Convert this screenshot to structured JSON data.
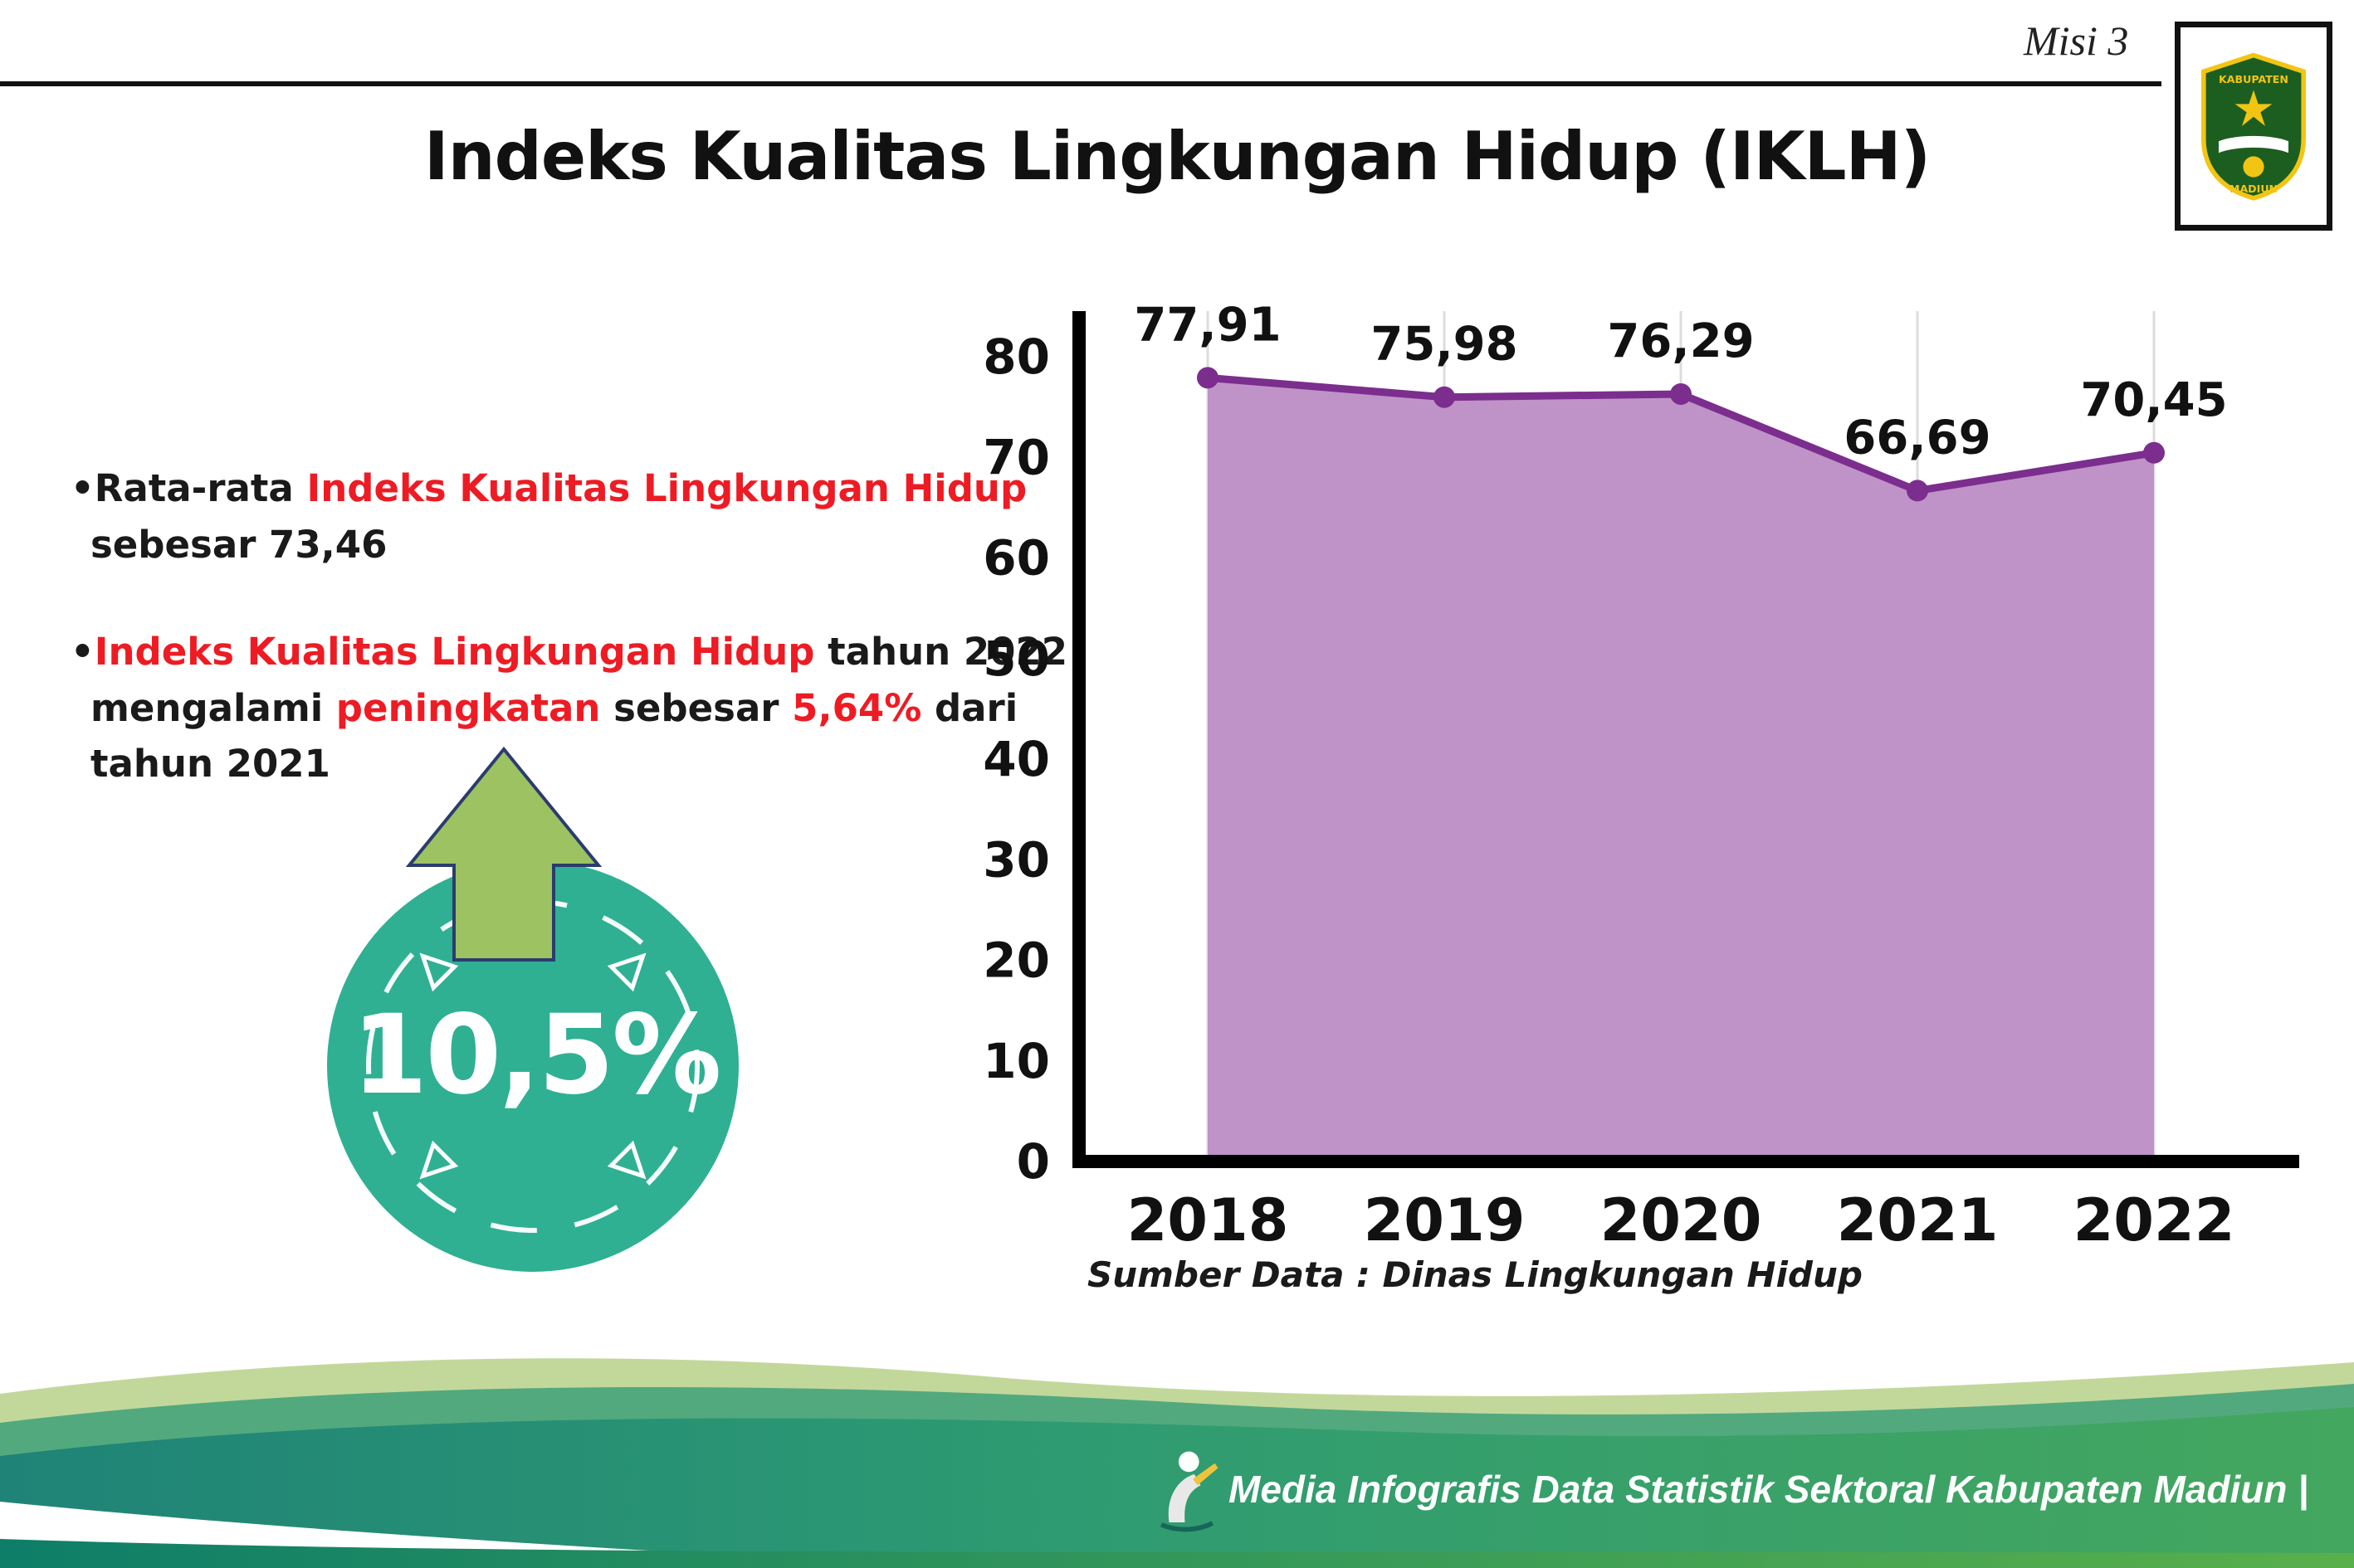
{
  "header": {
    "misi_label": "Misi 3",
    "logo": {
      "line1": "KABUPATEN",
      "line2": "MADIUN"
    },
    "title": "Indeks Kualitas Lingkungan Hidup (IKLH)"
  },
  "bullets": {
    "marker": "•",
    "b1": {
      "p1": "Rata-rata ",
      "p2": "Indeks Kualitas Lingkungan Hidup",
      "p3": "sebesar 73,46"
    },
    "b2": {
      "p1": "Indeks Kualitas Lingkungan Hidup",
      "p2": " tahun 2022",
      "p3": "mengalami ",
      "p4": "peningkatan",
      "p5": " sebesar ",
      "p6": "5,64%",
      "p7": " dari",
      "p8": "tahun 2021"
    }
  },
  "badge": {
    "value": "10,5%"
  },
  "chart_data": {
    "type": "area",
    "title": "Indeks Kualitas Lingkungan Hidup (IKLH)",
    "categories": [
      "2018",
      "2019",
      "2020",
      "2021",
      "2022"
    ],
    "values": [
      77.91,
      75.98,
      76.29,
      66.69,
      70.45
    ],
    "value_labels": [
      "77,91",
      "75,98",
      "76,29",
      "66,69",
      "70,45"
    ],
    "ylim": [
      0,
      80
    ],
    "yticks": [
      0,
      10,
      20,
      30,
      40,
      50,
      60,
      70,
      80
    ],
    "grid": "vertical",
    "legend": "none",
    "line_color": "#7b2e8d",
    "fill_color": "#bf93c8",
    "source": "Sumber Data : Dinas Lingkungan Hidup"
  },
  "footer": {
    "credit": "Media Infografis Data Statistik Sektoral Kabupaten Madiun |"
  },
  "colors": {
    "accent_red": "#ed1c24",
    "badge_teal": "#2fb093",
    "arrow_green": "#9cc262",
    "footer_teal": "#1f8377",
    "footer_green": "#58b04b"
  }
}
